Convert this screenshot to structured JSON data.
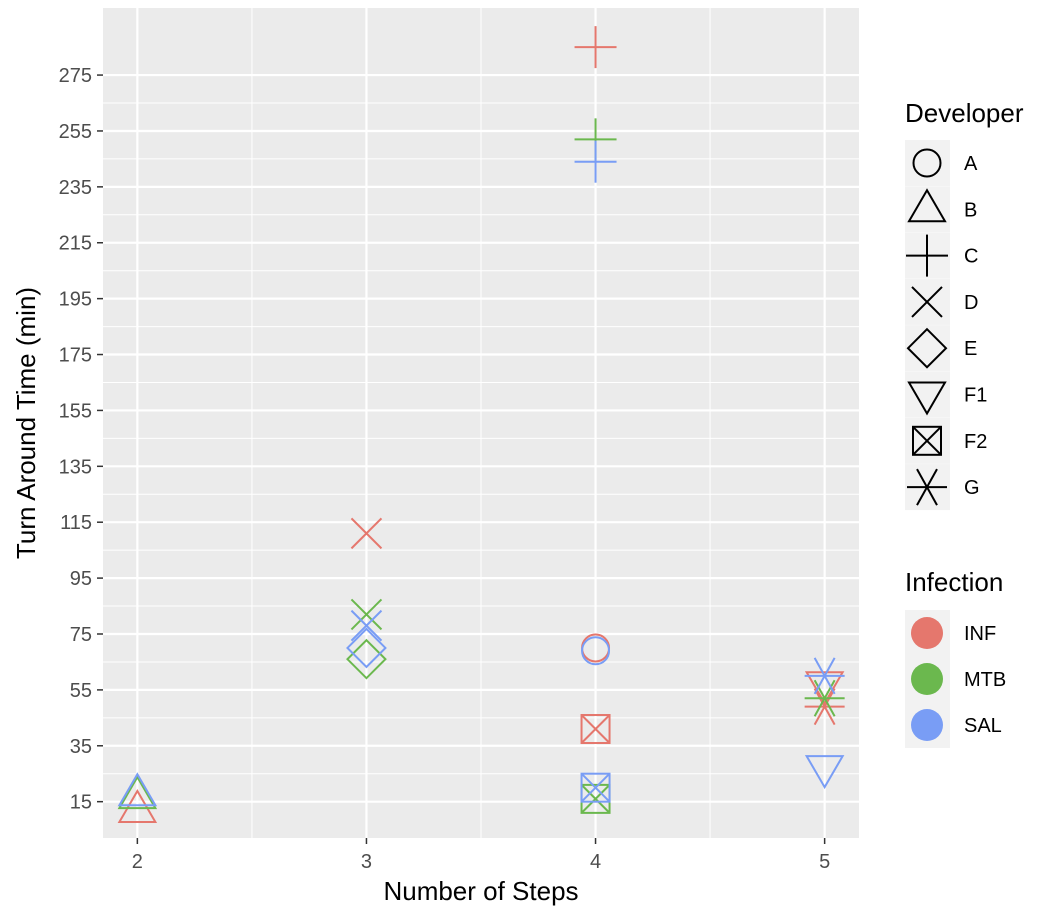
{
  "chart_data": {
    "type": "scatter",
    "xlabel": "Number of Steps",
    "ylabel": "Turn Around Time (min)",
    "x_ticks": [
      2,
      3,
      4,
      5
    ],
    "y_ticks": [
      15,
      35,
      55,
      75,
      95,
      115,
      135,
      155,
      175,
      195,
      215,
      235,
      255,
      275
    ],
    "xlim": [
      1.85,
      5.15
    ],
    "ylim": [
      2,
      299
    ],
    "grid": true,
    "legend_position": "right",
    "shape_legend": {
      "title": "Developer",
      "entries": [
        {
          "label": "A",
          "shape": "circle"
        },
        {
          "label": "B",
          "shape": "triangle-up"
        },
        {
          "label": "C",
          "shape": "plus"
        },
        {
          "label": "D",
          "shape": "cross"
        },
        {
          "label": "E",
          "shape": "diamond"
        },
        {
          "label": "F1",
          "shape": "triangle-down"
        },
        {
          "label": "F2",
          "shape": "square-cross"
        },
        {
          "label": "G",
          "shape": "asterisk"
        }
      ]
    },
    "color_legend": {
      "title": "Infection",
      "entries": [
        {
          "label": "INF",
          "color": "#E5776D"
        },
        {
          "label": "MTB",
          "color": "#6BB84E"
        },
        {
          "label": "SAL",
          "color": "#799DF5"
        }
      ]
    },
    "points": [
      {
        "x": 2,
        "y": 12,
        "developer": "B",
        "infection": "INF"
      },
      {
        "x": 2,
        "y": 17,
        "developer": "B",
        "infection": "MTB"
      },
      {
        "x": 2,
        "y": 18,
        "developer": "B",
        "infection": "SAL"
      },
      {
        "x": 3,
        "y": 111,
        "developer": "D",
        "infection": "INF"
      },
      {
        "x": 3,
        "y": 82,
        "developer": "D",
        "infection": "MTB"
      },
      {
        "x": 3,
        "y": 78,
        "developer": "D",
        "infection": "SAL"
      },
      {
        "x": 3,
        "y": 66,
        "developer": "E",
        "infection": "MTB"
      },
      {
        "x": 3,
        "y": 70,
        "developer": "E",
        "infection": "SAL"
      },
      {
        "x": 4,
        "y": 285,
        "developer": "C",
        "infection": "INF"
      },
      {
        "x": 4,
        "y": 252,
        "developer": "C",
        "infection": "MTB"
      },
      {
        "x": 4,
        "y": 244,
        "developer": "C",
        "infection": "SAL"
      },
      {
        "x": 4,
        "y": 70,
        "developer": "A",
        "infection": "INF"
      },
      {
        "x": 4,
        "y": 69,
        "developer": "A",
        "infection": "SAL"
      },
      {
        "x": 4,
        "y": 41,
        "developer": "F2",
        "infection": "INF"
      },
      {
        "x": 4,
        "y": 16,
        "developer": "F2",
        "infection": "MTB"
      },
      {
        "x": 4,
        "y": 20,
        "developer": "F2",
        "infection": "SAL"
      },
      {
        "x": 5,
        "y": 27,
        "developer": "F1",
        "infection": "SAL"
      },
      {
        "x": 5,
        "y": 57,
        "developer": "F1",
        "infection": "INF"
      },
      {
        "x": 5,
        "y": 49,
        "developer": "G",
        "infection": "INF"
      },
      {
        "x": 5,
        "y": 52,
        "developer": "G",
        "infection": "MTB"
      },
      {
        "x": 5,
        "y": 60,
        "developer": "G",
        "infection": "SAL"
      }
    ]
  }
}
